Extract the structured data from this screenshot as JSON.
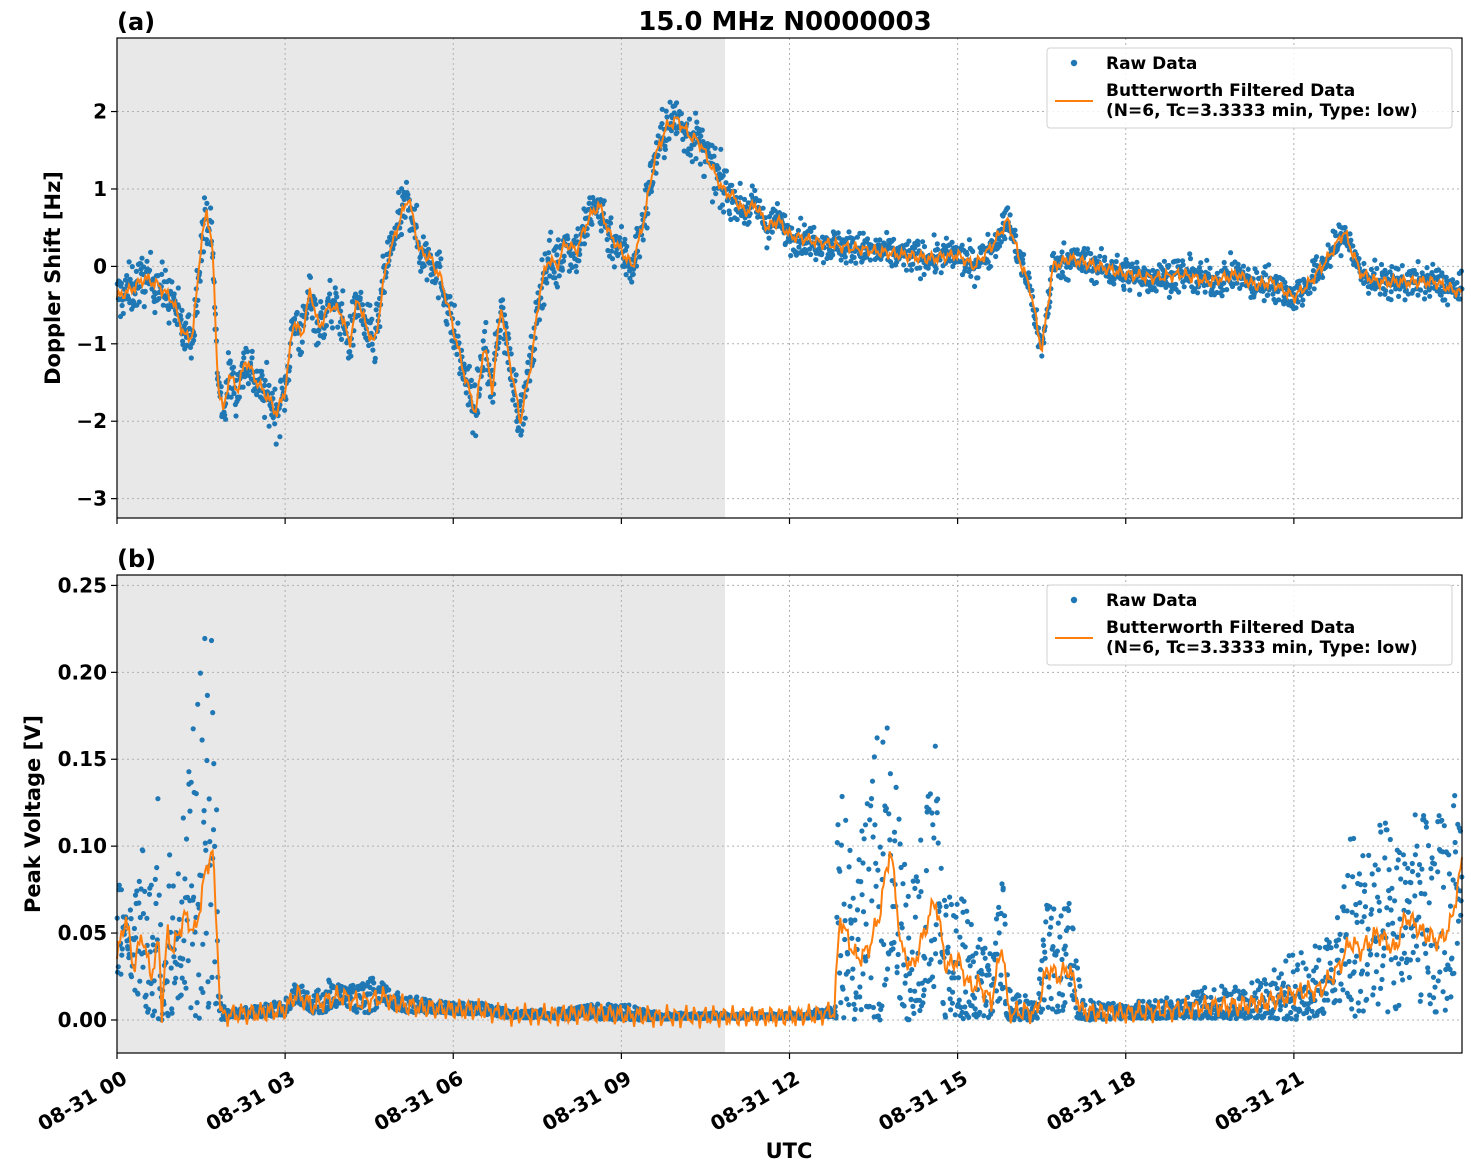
{
  "figure_title": "15.0 MHz N0000003",
  "x_axis_label": "UTC",
  "x_tick_labels": [
    "08-31 00",
    "08-31 03",
    "08-31 06",
    "08-31 09",
    "08-31 12",
    "08-31 15",
    "08-31 18",
    "08-31 21"
  ],
  "shaded_interval_hours": [
    0,
    10.85
  ],
  "colors": {
    "raw": "#1f77b4",
    "filtered": "#ff7f0e",
    "shade": "#e8e8e8",
    "grid": "#b0b0b0"
  },
  "legend": {
    "raw_label": "Raw Data",
    "filtered_label_line1": "Butterworth Filtered Data",
    "filtered_label_line2": "(N=6, Tc=3.3333 min, Type: low)",
    "placement": "top-right"
  },
  "chart_data": [
    {
      "type": "scatter",
      "panel_label": "(a)",
      "ylabel": "Doppler Shift [Hz]",
      "xlim_hours": [
        0,
        24
      ],
      "ylim": [
        -3.25,
        2.95
      ],
      "yticks": [
        -3,
        -2,
        -1,
        0,
        1,
        2
      ],
      "ytick_labels": [
        "−3",
        "−2",
        "−1",
        "0",
        "1",
        "2"
      ],
      "grid": true,
      "series": [
        {
          "name": "Raw Data",
          "spread_hz": 0.28
        },
        {
          "name": "Butterworth Filtered Data"
        }
      ],
      "x": [
        0,
        0.25,
        0.5,
        0.75,
        1,
        1.2,
        1.35,
        1.5,
        1.6,
        1.7,
        1.8,
        1.9,
        2,
        2.15,
        2.3,
        2.5,
        2.7,
        2.85,
        3,
        3.15,
        3.3,
        3.45,
        3.6,
        3.8,
        4,
        4.15,
        4.3,
        4.45,
        4.6,
        4.8,
        5,
        5.2,
        5.4,
        5.6,
        5.8,
        6,
        6.2,
        6.4,
        6.55,
        6.7,
        6.85,
        7,
        7.2,
        7.4,
        7.55,
        7.7,
        7.85,
        8,
        8.2,
        8.4,
        8.6,
        8.8,
        9,
        9.2,
        9.4,
        9.6,
        9.8,
        10,
        10.2,
        10.4,
        10.6,
        10.8,
        11,
        11.2,
        11.4,
        11.6,
        11.8,
        12,
        12.3,
        12.6,
        13,
        13.5,
        14,
        14.5,
        15,
        15.3,
        15.6,
        15.9,
        16.1,
        16.3,
        16.5,
        16.7,
        17,
        17.5,
        18,
        18.5,
        19,
        19.5,
        20,
        20.3,
        20.6,
        21,
        21.3,
        21.6,
        21.9,
        22.2,
        22.5,
        23,
        23.5,
        24
      ],
      "filtered": [
        -0.4,
        -0.3,
        -0.15,
        -0.25,
        -0.45,
        -0.9,
        -0.9,
        0.3,
        0.7,
        0.3,
        -1.5,
        -1.9,
        -1.4,
        -1.6,
        -1.2,
        -1.5,
        -1.7,
        -1.9,
        -1.6,
        -0.7,
        -0.9,
        -0.3,
        -0.8,
        -0.5,
        -0.6,
        -1.0,
        -0.4,
        -0.8,
        -1.0,
        0.0,
        0.5,
        0.9,
        0.2,
        0.1,
        -0.2,
        -0.8,
        -1.4,
        -1.9,
        -1.0,
        -1.6,
        -0.5,
        -1.2,
        -2.0,
        -1.2,
        -0.3,
        0.1,
        0.0,
        0.3,
        0.2,
        0.6,
        0.8,
        0.4,
        0.2,
        0.0,
        0.6,
        1.4,
        1.8,
        1.9,
        1.7,
        1.6,
        1.3,
        1.0,
        0.9,
        0.7,
        0.8,
        0.5,
        0.6,
        0.4,
        0.35,
        0.3,
        0.25,
        0.2,
        0.15,
        0.1,
        0.15,
        0.0,
        0.25,
        0.6,
        0.1,
        -0.3,
        -1.1,
        0.0,
        0.1,
        0.0,
        -0.1,
        -0.15,
        -0.1,
        -0.2,
        -0.1,
        -0.25,
        -0.2,
        -0.4,
        -0.2,
        0.1,
        0.45,
        -0.1,
        -0.2,
        -0.2,
        -0.2,
        -0.35
      ]
    },
    {
      "type": "scatter",
      "panel_label": "(b)",
      "ylabel": "Peak Voltage [V]",
      "xlim_hours": [
        0,
        24
      ],
      "ylim": [
        -0.019,
        0.256
      ],
      "yticks": [
        0,
        0.05,
        0.1,
        0.15,
        0.2,
        0.25
      ],
      "ytick_labels": [
        "0.00",
        "0.05",
        "0.10",
        "0.15",
        "0.20",
        "0.25"
      ],
      "grid": true,
      "series": [
        {
          "name": "Raw Data"
        },
        {
          "name": "Butterworth Filtered Data"
        }
      ],
      "x": [
        0,
        0.15,
        0.3,
        0.45,
        0.6,
        0.75,
        0.8,
        0.9,
        1,
        1.2,
        1.4,
        1.55,
        1.7,
        1.8,
        1.85,
        2,
        2.5,
        3,
        3.2,
        3.5,
        3.8,
        4,
        4.3,
        4.6,
        4.8,
        5,
        5.5,
        6,
        6.5,
        7,
        7.5,
        8,
        8.5,
        9,
        9.5,
        10,
        10.5,
        11,
        11.5,
        12,
        12.5,
        12.8,
        12.9,
        13,
        13.2,
        13.4,
        13.6,
        13.8,
        14,
        14.2,
        14.4,
        14.6,
        14.8,
        15,
        15.2,
        15.4,
        15.6,
        15.8,
        15.9,
        16,
        16.2,
        16.4,
        16.6,
        16.8,
        17,
        17.2,
        17.5,
        18,
        18.5,
        19,
        19.5,
        20,
        20.5,
        21,
        21.5,
        21.8,
        22,
        22.2,
        22.5,
        22.8,
        23,
        23.3,
        23.6,
        23.8,
        24
      ],
      "filtered": [
        0.035,
        0.06,
        0.03,
        0.05,
        0.025,
        0.045,
        0.005,
        0.05,
        0.04,
        0.06,
        0.05,
        0.08,
        0.1,
        0.04,
        0.002,
        0.003,
        0.004,
        0.006,
        0.015,
        0.008,
        0.012,
        0.014,
        0.01,
        0.012,
        0.013,
        0.009,
        0.007,
        0.006,
        0.006,
        0.003,
        0.003,
        0.003,
        0.004,
        0.003,
        0.002,
        0.002,
        0.002,
        0.002,
        0.002,
        0.002,
        0.003,
        0.005,
        0.06,
        0.05,
        0.035,
        0.04,
        0.06,
        0.1,
        0.04,
        0.03,
        0.05,
        0.07,
        0.03,
        0.035,
        0.02,
        0.02,
        0.01,
        0.045,
        0.005,
        0.004,
        0.005,
        0.004,
        0.03,
        0.025,
        0.03,
        0.005,
        0.004,
        0.004,
        0.005,
        0.006,
        0.008,
        0.008,
        0.01,
        0.015,
        0.018,
        0.03,
        0.045,
        0.04,
        0.05,
        0.04,
        0.06,
        0.05,
        0.045,
        0.055,
        0.09
      ],
      "raw_upper": [
        0.09,
        0.07,
        0.065,
        0.1,
        0.08,
        0.16,
        0.02,
        0.13,
        0.1,
        0.13,
        0.18,
        0.22,
        0.24,
        0.1,
        0.01,
        0.006,
        0.008,
        0.012,
        0.022,
        0.015,
        0.025,
        0.02,
        0.02,
        0.025,
        0.02,
        0.016,
        0.012,
        0.01,
        0.01,
        0.006,
        0.006,
        0.007,
        0.009,
        0.01,
        0.005,
        0.004,
        0.004,
        0.004,
        0.004,
        0.004,
        0.006,
        0.01,
        0.2,
        0.12,
        0.1,
        0.13,
        0.18,
        0.2,
        0.1,
        0.1,
        0.12,
        0.16,
        0.08,
        0.1,
        0.06,
        0.05,
        0.04,
        0.09,
        0.02,
        0.015,
        0.015,
        0.01,
        0.07,
        0.06,
        0.07,
        0.015,
        0.01,
        0.01,
        0.012,
        0.014,
        0.02,
        0.02,
        0.025,
        0.04,
        0.045,
        0.06,
        0.12,
        0.1,
        0.12,
        0.11,
        0.12,
        0.12,
        0.12,
        0.13,
        0.13
      ]
    }
  ]
}
